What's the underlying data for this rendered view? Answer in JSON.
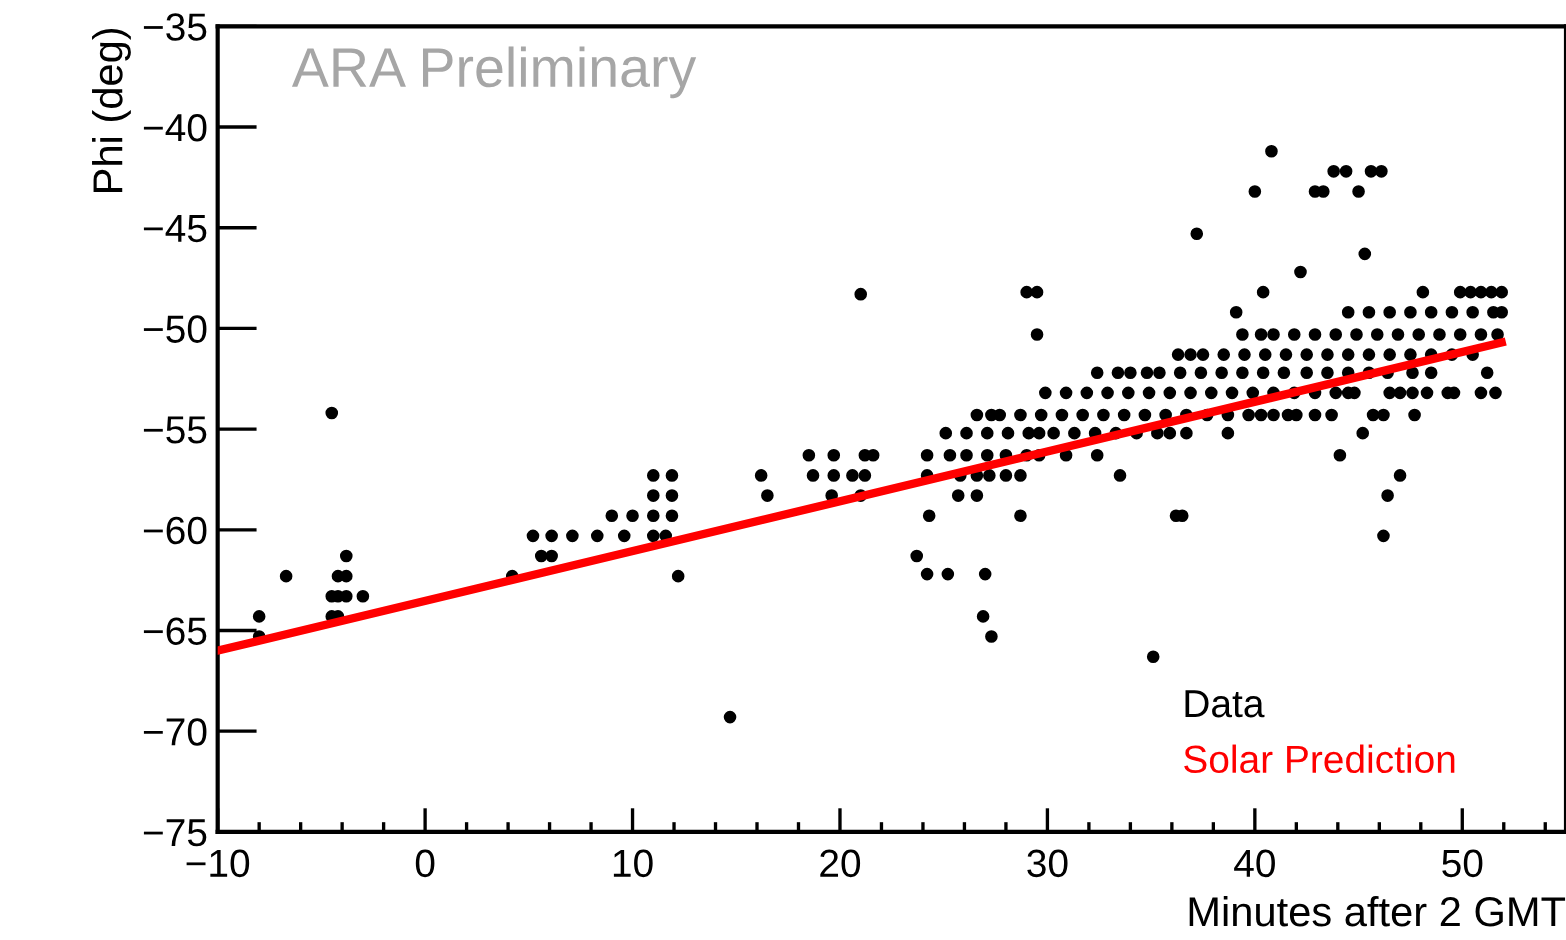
{
  "chart_data": {
    "type": "scatter",
    "xlabel": "Minutes after 2 GMT",
    "ylabel": "Phi (deg)",
    "annotations": [
      "ARA Preliminary"
    ],
    "xlim": [
      -10,
      55
    ],
    "ylim": [
      -75,
      -35
    ],
    "xticks": [
      {
        "value": -10,
        "label": "−10"
      },
      0,
      10,
      20,
      30,
      40,
      50
    ],
    "yticks": [
      {
        "value": -75,
        "label": "−75"
      },
      {
        "value": -70,
        "label": "−70"
      },
      {
        "value": -65,
        "label": "−65"
      },
      {
        "value": -60,
        "label": "−60"
      },
      {
        "value": -55,
        "label": "−55"
      },
      {
        "value": -50,
        "label": "−50"
      },
      {
        "value": -45,
        "label": "−45"
      },
      {
        "value": -40,
        "label": "−40"
      },
      {
        "value": -35,
        "label": "−35"
      }
    ],
    "grid": false,
    "legend": "bottom right",
    "marker": "circle",
    "series": [
      {
        "name": "Data",
        "type": "scatter",
        "color": "#000000",
        "x": [
          -8.0,
          -8.0,
          -6.7,
          -4.5,
          -3.8,
          -4.2,
          -3.8,
          -4.5,
          -4.2,
          -3.8,
          -3.0,
          -4.5,
          -4.2,
          4.2,
          5.2,
          6.1,
          5.6,
          6.1,
          7.1,
          8.3,
          9.0,
          9.6,
          10.0,
          11.0,
          11.0,
          11.0,
          11.0,
          11.6,
          11.9,
          11.9,
          11.9,
          12.2,
          14.7,
          16.2,
          16.5,
          18.5,
          18.7,
          19.7,
          19.6,
          19.7,
          20.6,
          21.2,
          21.2,
          21.0,
          21.6,
          21.0,
          29.0,
          29.5,
          40.4,
          48.1,
          49.9,
          50.4,
          50.9,
          51.4,
          51.9,
          39.1,
          44.5,
          45.5,
          46.5,
          47.5,
          48.5,
          49.5,
          50.5,
          51.5,
          51.9,
          29.5,
          39.4,
          40.3,
          40.9,
          41.9,
          42.9,
          43.9,
          44.9,
          45.9,
          46.9,
          47.9,
          48.9,
          49.9,
          50.9,
          51.7,
          36.3,
          36.9,
          37.5,
          38.5,
          39.5,
          40.5,
          41.5,
          42.5,
          43.5,
          44.5,
          45.5,
          46.5,
          47.5,
          48.5,
          49.5,
          50.5,
          32.4,
          33.4,
          34.0,
          34.8,
          35.4,
          36.4,
          37.4,
          38.4,
          39.4,
          40.4,
          41.4,
          42.5,
          43.5,
          44.5,
          45.5,
          46.4,
          47.6,
          48.5,
          51.2,
          29.9,
          30.9,
          31.9,
          32.9,
          33.9,
          34.9,
          35.9,
          36.9,
          37.9,
          38.9,
          39.9,
          40.9,
          41.9,
          42.9,
          43.9,
          44.5,
          44.8,
          46.5,
          47.0,
          47.6,
          48.3,
          49.3,
          49.6,
          50.9,
          51.6,
          26.6,
          27.3,
          27.7,
          28.7,
          29.7,
          30.7,
          31.7,
          32.7,
          33.7,
          34.7,
          35.7,
          36.7,
          37.7,
          38.7,
          39.7,
          40.3,
          40.9,
          41.6,
          42.0,
          42.9,
          43.7,
          45.7,
          46.2,
          47.7,
          25.1,
          26.1,
          27.1,
          28.1,
          29.1,
          29.6,
          30.3,
          31.3,
          32.3,
          33.3,
          34.3,
          35.3,
          35.9,
          36.7,
          38.7,
          45.2,
          24.2,
          25.3,
          26.1,
          27.1,
          28.0,
          29.0,
          29.6,
          30.9,
          32.4,
          44.1,
          24.2,
          25.8,
          26.6,
          27.2,
          28.0,
          28.7,
          33.5,
          47.0,
          25.7,
          26.6,
          46.4,
          24.3,
          28.7,
          36.2,
          36.5,
          46.2,
          23.7,
          24.2,
          25.2,
          27.0,
          40.8,
          43.8,
          44.4,
          45.6,
          46.1,
          40.0,
          42.9,
          43.3,
          45.0,
          37.2,
          45.3,
          42.2,
          26.9,
          27.3,
          35.1
        ],
        "values": [
          -64.3,
          -65.3,
          -62.3,
          -54.2,
          -61.3,
          -62.3,
          -62.3,
          -63.3,
          -63.3,
          -63.3,
          -63.3,
          -64.3,
          -64.3,
          -62.3,
          -60.3,
          -60.3,
          -61.3,
          -61.3,
          -60.3,
          -60.3,
          -59.3,
          -60.3,
          -59.3,
          -57.3,
          -58.3,
          -59.3,
          -60.3,
          -60.3,
          -57.3,
          -58.3,
          -59.3,
          -62.3,
          -69.3,
          -57.3,
          -58.3,
          -56.3,
          -57.3,
          -56.3,
          -58.3,
          -57.3,
          -57.3,
          -56.3,
          -57.3,
          -58.3,
          -56.3,
          -48.3,
          -48.2,
          -48.2,
          -48.2,
          -48.2,
          -48.2,
          -48.2,
          -48.2,
          -48.2,
          -48.2,
          -49.2,
          -49.2,
          -49.2,
          -49.2,
          -49.2,
          -49.2,
          -49.2,
          -49.2,
          -49.2,
          -49.2,
          -50.3,
          -50.3,
          -50.3,
          -50.3,
          -50.3,
          -50.3,
          -50.3,
          -50.3,
          -50.3,
          -50.3,
          -50.3,
          -50.3,
          -50.3,
          -50.3,
          -50.3,
          -51.3,
          -51.3,
          -51.3,
          -51.3,
          -51.3,
          -51.3,
          -51.3,
          -51.3,
          -51.3,
          -51.3,
          -51.3,
          -51.3,
          -51.3,
          -51.3,
          -51.3,
          -51.3,
          -52.2,
          -52.2,
          -52.2,
          -52.2,
          -52.2,
          -52.2,
          -52.2,
          -52.2,
          -52.2,
          -52.2,
          -52.2,
          -52.2,
          -52.2,
          -52.2,
          -52.2,
          -52.2,
          -52.2,
          -52.2,
          -52.2,
          -53.2,
          -53.2,
          -53.2,
          -53.2,
          -53.2,
          -53.2,
          -53.2,
          -53.2,
          -53.2,
          -53.2,
          -53.2,
          -53.2,
          -53.2,
          -53.2,
          -53.2,
          -53.2,
          -53.2,
          -53.2,
          -53.2,
          -53.2,
          -53.2,
          -53.2,
          -53.2,
          -53.2,
          -53.2,
          -54.3,
          -54.3,
          -54.3,
          -54.3,
          -54.3,
          -54.3,
          -54.3,
          -54.3,
          -54.3,
          -54.3,
          -54.3,
          -54.3,
          -54.3,
          -54.3,
          -54.3,
          -54.3,
          -54.3,
          -54.3,
          -54.3,
          -54.3,
          -54.3,
          -54.3,
          -54.3,
          -54.3,
          -55.2,
          -55.2,
          -55.2,
          -55.2,
          -55.2,
          -55.2,
          -55.2,
          -55.2,
          -55.2,
          -55.2,
          -55.2,
          -55.2,
          -55.2,
          -55.2,
          -55.2,
          -55.2,
          -56.3,
          -56.3,
          -56.3,
          -56.3,
          -56.3,
          -56.3,
          -56.3,
          -56.3,
          -56.3,
          -56.3,
          -57.3,
          -57.3,
          -57.3,
          -57.3,
          -57.3,
          -57.3,
          -57.3,
          -57.3,
          -58.3,
          -58.3,
          -58.3,
          -59.3,
          -59.3,
          -59.3,
          -59.3,
          -60.3,
          -61.3,
          -62.2,
          -62.2,
          -62.2,
          -41.2,
          -42.2,
          -42.2,
          -42.2,
          -42.2,
          -43.2,
          -43.2,
          -43.2,
          -43.2,
          -45.3,
          -46.3,
          -47.2,
          -64.3,
          -65.3,
          -66.3
        ]
      },
      {
        "name": "Solar Prediction",
        "type": "line",
        "color": "#ff0000",
        "line_style": "solid",
        "marker": "none",
        "x": [
          -10,
          51.9
        ],
        "values": [
          -66.0,
          -50.7
        ]
      }
    ]
  }
}
